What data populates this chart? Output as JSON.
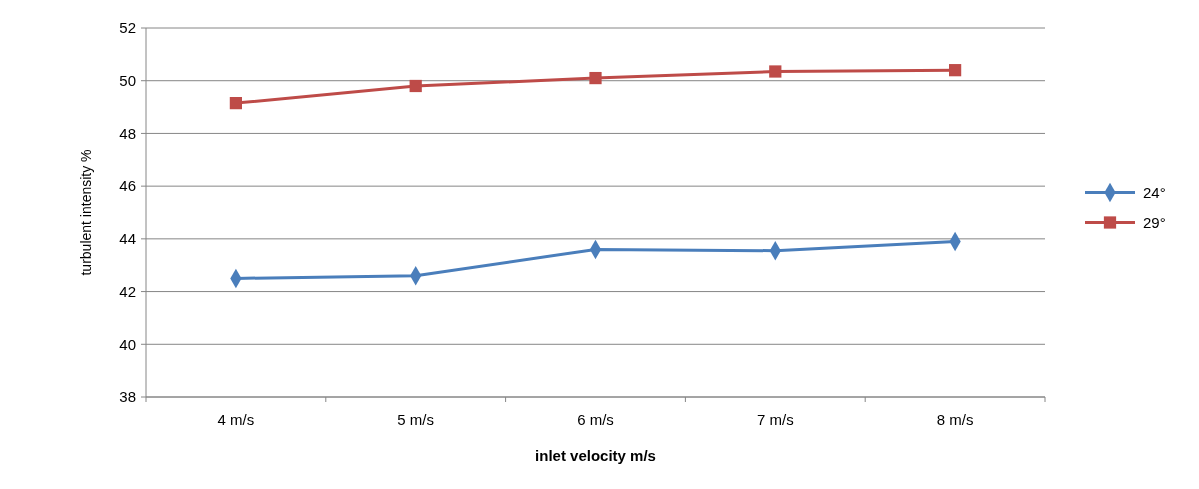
{
  "chart_data": {
    "type": "line",
    "xlabel": "inlet velocity m/s",
    "ylabel": "turbulent intensity %",
    "categories": [
      "4 m/s",
      "5 m/s",
      "6 m/s",
      "7 m/s",
      "8 m/s"
    ],
    "series": [
      {
        "name": "24°",
        "color": "#4a7ebb",
        "marker": "diamond",
        "values": [
          42.5,
          42.6,
          43.6,
          43.55,
          43.9
        ]
      },
      {
        "name": "29°",
        "color": "#be4b48",
        "marker": "square",
        "values": [
          49.15,
          49.8,
          50.1,
          50.35,
          50.4
        ]
      }
    ],
    "ylim": [
      38,
      52
    ],
    "yticks": [
      38,
      40,
      42,
      44,
      46,
      48,
      50,
      52
    ],
    "grid": "y",
    "legend": "right"
  }
}
